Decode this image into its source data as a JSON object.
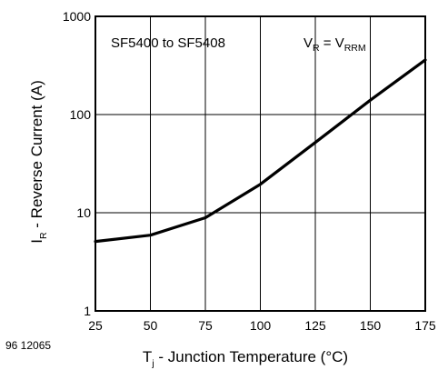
{
  "figure_id": "96 12065",
  "chart_data": {
    "type": "line",
    "title": "",
    "xlabel": {
      "main": "T",
      "sub": "j",
      "rest": " - Junction Temperature (°C)"
    },
    "ylabel": {
      "main": "I",
      "sub": "R",
      "rest": " - Reverse Current (A)"
    },
    "x_ticks": [
      "25",
      "50",
      "75",
      "100",
      "125",
      "150",
      "175"
    ],
    "y_ticks": [
      "1",
      "10",
      "100",
      "1000"
    ],
    "xlim": [
      25,
      175
    ],
    "ylim": [
      1,
      1000
    ],
    "y_scale": "log",
    "grid": true,
    "annotations": {
      "device": "SF5400 to SF5408",
      "condition": {
        "v1": "V",
        "s1": "R",
        "eq": " = V",
        "s2": "RRM"
      }
    },
    "series": [
      {
        "x": [
          25,
          50,
          75,
          100,
          125,
          150,
          175
        ],
        "y": [
          5.1,
          5.9,
          8.9,
          19.5,
          52,
          140,
          360
        ]
      }
    ]
  }
}
